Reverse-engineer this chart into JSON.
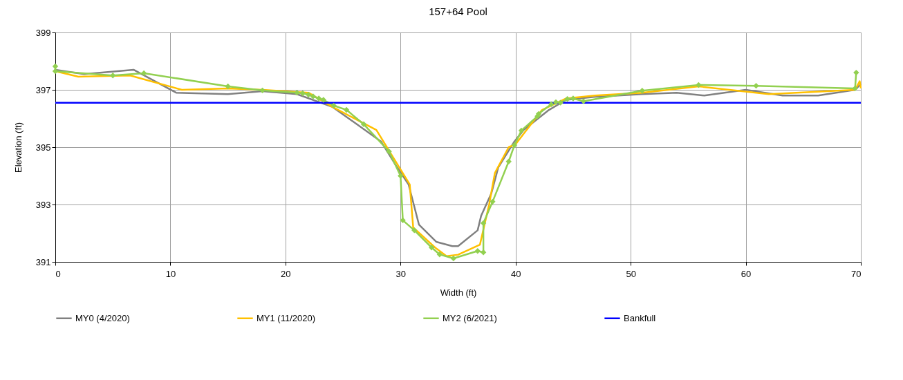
{
  "chart_data": {
    "type": "line",
    "title": "157+64 Pool",
    "xlabel": "Width (ft)",
    "ylabel": "Elevation (ft)",
    "xlim": [
      0,
      70
    ],
    "xticks": [
      0,
      10,
      20,
      30,
      40,
      50,
      60,
      70
    ],
    "ylim": [
      391,
      399
    ],
    "yticks": [
      391,
      393,
      395,
      397,
      399
    ],
    "grid": true,
    "legend": "bottom",
    "series": [
      {
        "name": "MY0 (4/2020)",
        "color": "#808080",
        "x": [
          0,
          2.5,
          6.8,
          10.5,
          15,
          18,
          21,
          24.1,
          28.3,
          29.7,
          30.7,
          31.6,
          33.1,
          34.5,
          35,
          36.7,
          37,
          37.9,
          38.5,
          39.9,
          40.7,
          42.9,
          44.4,
          46.8,
          51,
          54,
          56.4,
          60,
          63.2,
          66.3,
          69.5,
          70
        ],
        "values": [
          397.7,
          397.55,
          397.7,
          396.9,
          396.85,
          396.95,
          396.85,
          396.4,
          395.2,
          394.3,
          393.7,
          392.3,
          391.7,
          391.55,
          391.55,
          392.1,
          392.6,
          393.4,
          394.3,
          395.2,
          395.6,
          396.3,
          396.65,
          396.75,
          396.85,
          396.9,
          396.8,
          397,
          396.8,
          396.8,
          397,
          397.2
        ]
      },
      {
        "name": "MY1 (11/2020)",
        "color": "#ffc000",
        "x": [
          0,
          2,
          6.5,
          11,
          15,
          18,
          22,
          24.1,
          27.9,
          30.8,
          31.1,
          33,
          34,
          35,
          36.9,
          37.7,
          38.2,
          39.4,
          40,
          42.3,
          44.4,
          46.9,
          51,
          55.9,
          62,
          69.5,
          69.9,
          70
        ],
        "values": [
          397.65,
          397.46,
          397.5,
          397,
          397.05,
          397,
          396.9,
          396.4,
          395.6,
          393.7,
          392.2,
          391.5,
          391.2,
          391.25,
          391.6,
          393,
          394.1,
          395,
          395.1,
          396.3,
          396.7,
          396.8,
          396.9,
          397.12,
          396.85,
          397,
          397.3,
          397.05
        ]
      },
      {
        "name": "MY2 (6/2021)",
        "color": "#92d050",
        "marker": "diamond",
        "x": [
          0,
          0,
          5,
          7.7,
          15,
          18,
          21,
          21.5,
          22,
          22.4,
          22.9,
          23.3,
          24.2,
          25.3,
          26.8,
          29,
          30,
          30.2,
          31.2,
          32.7,
          33.4,
          34.6,
          36.7,
          37.2,
          37.2,
          38,
          39.4,
          39.9,
          40.5,
          41.9,
          42,
          43.1,
          43.5,
          43.9,
          44.5,
          45,
          45.9,
          51,
          55.9,
          60.9,
          69.5,
          69.6
        ],
        "values": [
          397.82,
          397.65,
          397.5,
          397.58,
          397.12,
          396.98,
          396.9,
          396.88,
          396.83,
          396.77,
          396.7,
          396.65,
          396.45,
          396.3,
          395.8,
          394.85,
          394,
          392.45,
          392.1,
          391.5,
          391.26,
          391.12,
          391.38,
          391.33,
          392.35,
          393.1,
          394.5,
          395.07,
          395.58,
          396.08,
          396.16,
          396.5,
          396.57,
          396.55,
          396.68,
          396.7,
          396.6,
          396.97,
          397.17,
          397.14,
          397.05,
          397.6
        ]
      },
      {
        "name": "Bankfull",
        "color": "#0000ff",
        "x": [
          0,
          70
        ],
        "values": [
          396.55,
          396.55
        ]
      }
    ]
  }
}
